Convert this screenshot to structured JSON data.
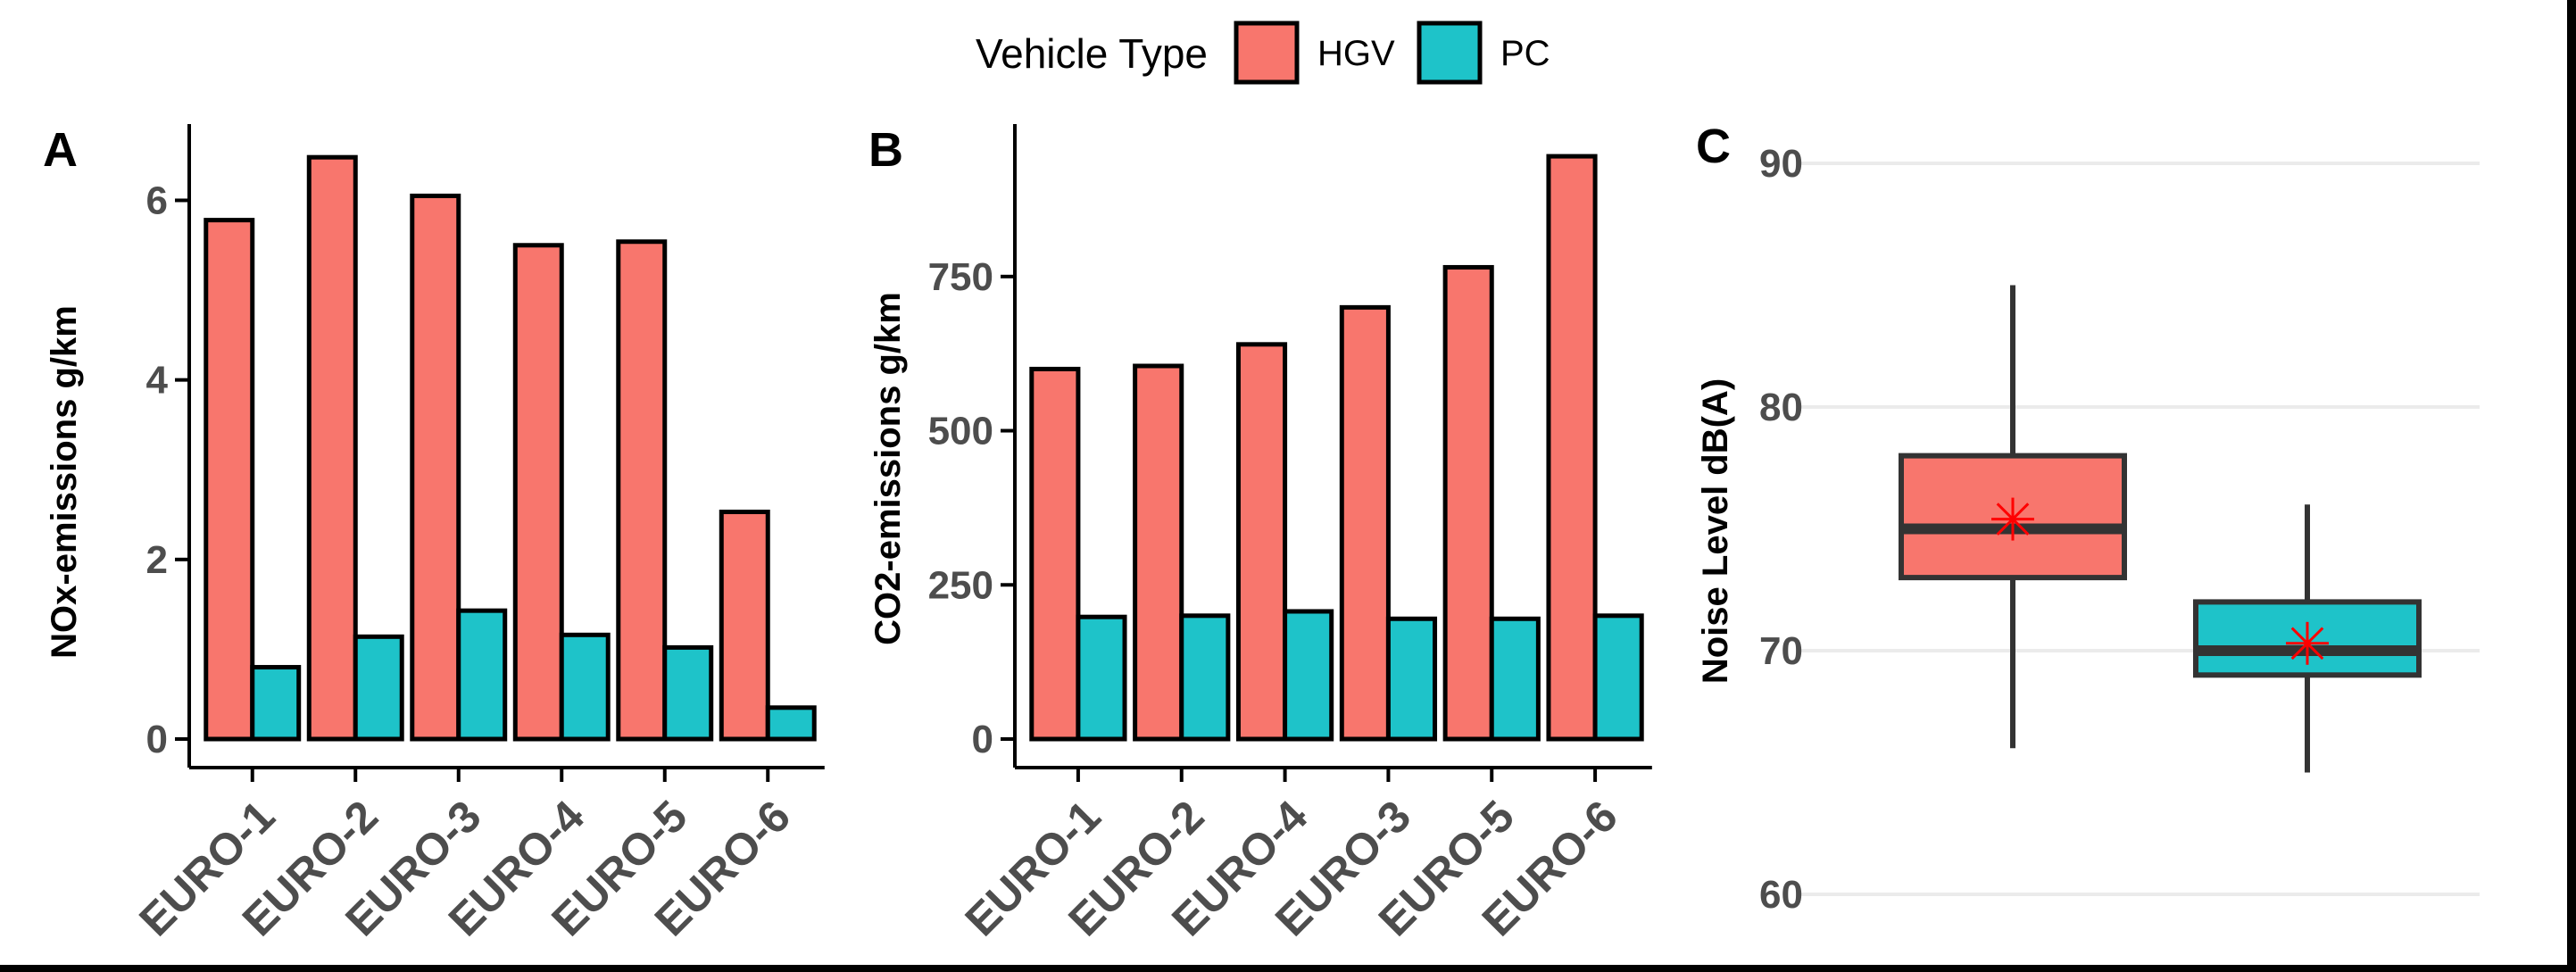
{
  "legend": {
    "title": "Vehicle Type",
    "entries": [
      {
        "label": "HGV",
        "color": "#f8766d"
      },
      {
        "label": "PC",
        "color": "#1ec3c9"
      }
    ]
  },
  "chart_data": [
    {
      "type": "bar",
      "panel": "A",
      "categories": [
        "EURO-1",
        "EURO-2",
        "EURO-3",
        "EURO-4",
        "EURO-5",
        "EURO-6"
      ],
      "series": [
        {
          "name": "HGV",
          "color": "#f8766d",
          "values": [
            5.78,
            6.48,
            6.05,
            5.5,
            5.54,
            2.53
          ]
        },
        {
          "name": "PC",
          "color": "#1ec3c9",
          "values": [
            0.8,
            1.14,
            1.43,
            1.16,
            1.02,
            0.35
          ]
        }
      ],
      "xlabel": "",
      "ylabel": "NOx-emissions g/km",
      "ylim": [
        0,
        6.8
      ],
      "yticks": [
        0,
        2,
        4,
        6
      ],
      "grid": false
    },
    {
      "type": "bar",
      "panel": "B",
      "categories": [
        "EURO-1",
        "EURO-2",
        "EURO-4",
        "EURO-3",
        "EURO-5",
        "EURO-6"
      ],
      "series": [
        {
          "name": "HGV",
          "color": "#f8766d",
          "values": [
            600,
            605,
            640,
            700,
            765,
            945
          ]
        },
        {
          "name": "PC",
          "color": "#1ec3c9",
          "values": [
            198,
            200,
            207,
            195,
            195,
            200
          ]
        }
      ],
      "xlabel": "",
      "ylabel": "CO2-emissions g/km",
      "ylim": [
        0,
        990
      ],
      "yticks": [
        0,
        250,
        500,
        750
      ],
      "grid": false
    },
    {
      "type": "box",
      "panel": "C",
      "groups": [
        {
          "name": "HGV",
          "color": "#f8766d",
          "min": 66,
          "q1": 73,
          "median": 75,
          "q3": 78,
          "max": 85,
          "mean": 75.4
        },
        {
          "name": "PC",
          "color": "#1ec3c9",
          "min": 65,
          "q1": 69,
          "median": 70,
          "q3": 72,
          "max": 76,
          "mean": 70.3
        }
      ],
      "xlabel": "",
      "ylabel": "Noise Level dB(A)",
      "ylim": [
        59.5,
        91
      ],
      "yticks": [
        60,
        70,
        80,
        90
      ],
      "grid": true,
      "mean_marker_color": "#ff0000"
    }
  ]
}
